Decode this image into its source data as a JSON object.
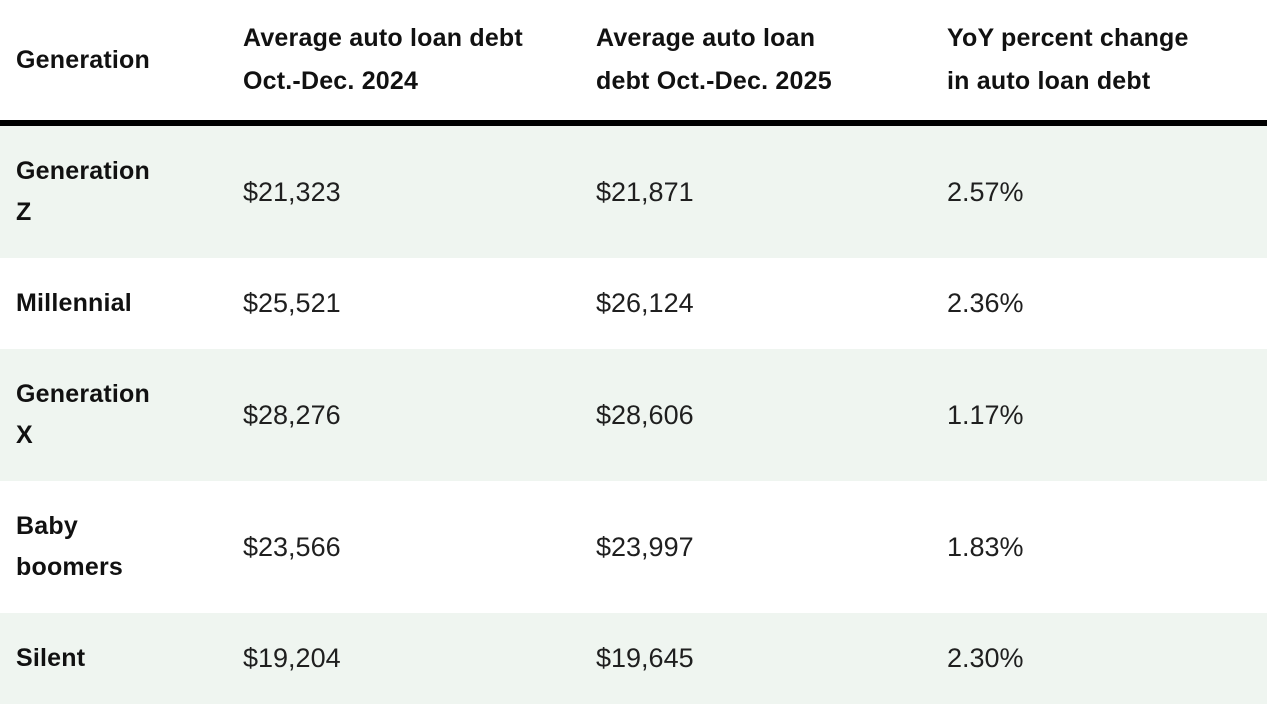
{
  "colors": {
    "row_shade": "#eff5f0",
    "header_rule": "#000000",
    "header_text": "#111111",
    "body_text": "#1f1f1f",
    "background": "#ffffff"
  },
  "table": {
    "columns": [
      "Generation",
      "Average auto loan debt Oct.-Dec. 2024",
      "Average auto loan debt Oct.-Dec. 2025",
      "YoY percent change in auto loan debt"
    ],
    "rows": [
      {
        "cells": [
          "Generation Z",
          "$21,323",
          "$21,871",
          "2.57%"
        ]
      },
      {
        "cells": [
          "Millennial",
          "$25,521",
          "$26,124",
          "2.36%"
        ]
      },
      {
        "cells": [
          "Generation X",
          "$28,276",
          "$28,606",
          "1.17%"
        ]
      },
      {
        "cells": [
          "Baby boomers",
          "$23,566",
          "$23,997",
          "1.83%"
        ]
      },
      {
        "cells": [
          "Silent",
          "$19,204",
          "$19,645",
          "2.30%"
        ]
      }
    ]
  },
  "chart_data": {
    "type": "table",
    "title": "",
    "columns": [
      "Generation",
      "Average auto loan debt Oct.-Dec. 2024",
      "Average auto loan debt Oct.-Dec. 2025",
      "YoY percent change in auto loan debt"
    ],
    "rows": [
      [
        "Generation Z",
        "$21,323",
        "$21,871",
        "2.57%"
      ],
      [
        "Millennial",
        "$25,521",
        "$26,124",
        "2.36%"
      ],
      [
        "Generation X",
        "$28,276",
        "$28,606",
        "1.17%"
      ],
      [
        "Baby boomers",
        "$23,566",
        "$23,997",
        "1.83%"
      ],
      [
        "Silent",
        "$19,204",
        "$19,645",
        "2.30%"
      ]
    ],
    "numeric": {
      "categories": [
        "Generation Z",
        "Millennial",
        "Generation X",
        "Baby boomers",
        "Silent"
      ],
      "series": [
        {
          "name": "Average auto loan debt Oct.-Dec. 2024",
          "values": [
            21323,
            25521,
            28276,
            23566,
            19204
          ]
        },
        {
          "name": "Average auto loan debt Oct.-Dec. 2025",
          "values": [
            21871,
            26124,
            28606,
            23997,
            19645
          ]
        },
        {
          "name": "YoY percent change in auto loan debt",
          "values": [
            2.57,
            2.36,
            1.17,
            1.83,
            2.3
          ]
        }
      ]
    },
    "layout": {
      "row_striping": "odd rows shaded pale green",
      "header_separator": "thick black rule",
      "grid": false
    }
  }
}
